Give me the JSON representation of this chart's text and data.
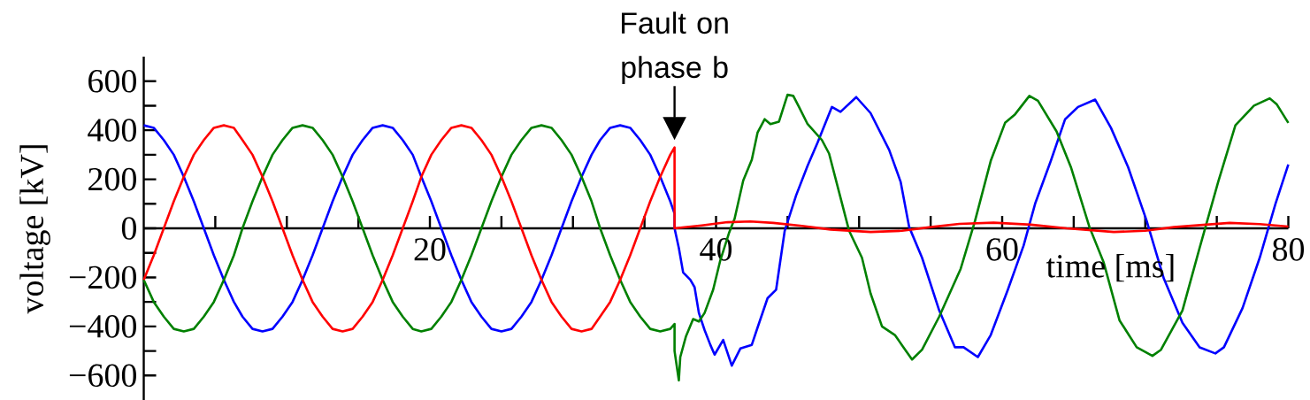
{
  "chart_data": {
    "type": "line",
    "xlabel": "time [ms]",
    "ylabel": "voltage [kV]",
    "annotations": [
      {
        "text": "Fault on phase b",
        "x": 37.1,
        "y": 330
      }
    ],
    "xlim": [
      0,
      80
    ],
    "ylim": [
      -700,
      700
    ],
    "xticks": [
      {
        "value": 5,
        "label": null
      },
      {
        "value": 10,
        "label": null
      },
      {
        "value": 15,
        "label": null
      },
      20,
      {
        "value": 25,
        "label": null
      },
      {
        "value": 30,
        "label": null
      },
      {
        "value": 35,
        "label": null
      },
      40,
      {
        "value": 45,
        "label": null
      },
      {
        "value": 50,
        "label": null
      },
      {
        "value": 55,
        "label": null
      },
      60,
      {
        "value": 65,
        "label": null
      },
      {
        "value": 70,
        "label": null
      },
      {
        "value": 75,
        "label": null
      },
      80
    ],
    "yticks": [
      {
        "value": -600,
        "label": "−600"
      },
      {
        "value": -500,
        "label": null
      },
      {
        "value": -400,
        "label": "−400"
      },
      {
        "value": -300,
        "label": null
      },
      {
        "value": -200,
        "label": "−200"
      },
      {
        "value": -100,
        "label": null
      },
      0,
      {
        "value": 100,
        "label": null
      },
      200,
      {
        "value": 300,
        "label": null
      },
      400,
      {
        "value": 500,
        "label": null
      },
      600
    ],
    "series": [
      {
        "color": "#0000ff",
        "x": [
          0,
          0.7,
          1.4,
          2.1,
          2.8,
          3.5,
          4.2,
          4.9,
          5.6,
          6.3,
          6.9,
          7.6,
          8.3,
          9.0,
          9.7,
          10.4,
          11.1,
          11.8,
          12.5,
          13.2,
          13.9,
          14.6,
          15.3,
          16.0,
          16.7,
          17.4,
          18.1,
          18.8,
          19.4,
          20.1,
          20.8,
          21.5,
          22.2,
          22.9,
          23.6,
          24.3,
          25.0,
          25.7,
          26.4,
          27.1,
          27.8,
          28.5,
          29.2,
          29.9,
          30.6,
          31.3,
          31.9,
          32.6,
          33.3,
          34.0,
          34.7,
          35.4,
          36.1,
          36.8,
          37.1,
          37.1,
          37.4,
          37.7,
          38.2,
          38.5,
          38.8,
          39.2,
          39.6,
          39.9,
          40.5,
          41.1,
          41.7,
          42.5,
          42.9,
          43.6,
          44.2,
          44.8,
          45.6,
          46.4,
          47.1,
          48.1,
          48.7,
          49.8,
          50.8,
          52.1,
          52.9,
          53.5,
          54.4,
          55.6,
          56.7,
          57.3,
          58.3,
          59.2,
          60.4,
          61.5,
          62.3,
          63.4,
          64.4,
          65.3,
          66.5,
          67.6,
          68.8,
          70.1,
          71.3,
          72.6,
          73.8,
          74.9,
          75.5,
          76.8,
          78.0,
          79.1,
          80.0
        ],
        "values": [
          420,
          410,
          360,
          300,
          210,
          110,
          0,
          -110,
          -210,
          -300,
          -360,
          -410,
          -420,
          -410,
          -360,
          -300,
          -210,
          -110,
          0,
          110,
          210,
          300,
          360,
          410,
          420,
          410,
          360,
          300,
          210,
          110,
          0,
          -110,
          -210,
          -300,
          -360,
          -410,
          -420,
          -410,
          -360,
          -300,
          -210,
          -110,
          0,
          110,
          210,
          300,
          360,
          410,
          420,
          410,
          360,
          300,
          210,
          110,
          60,
          0,
          -80,
          -180,
          -210,
          -240,
          -345,
          -415,
          -475,
          -515,
          -455,
          -560,
          -490,
          -475,
          -405,
          -285,
          -250,
          -10,
          135,
          255,
          350,
          495,
          475,
          535,
          470,
          320,
          190,
          5,
          -120,
          -335,
          -485,
          -485,
          -525,
          -435,
          -250,
          -70,
          100,
          275,
          445,
          495,
          525,
          410,
          250,
          30,
          -205,
          -385,
          -485,
          -510,
          -485,
          -325,
          -120,
          100,
          260
        ]
      },
      {
        "color": "#008000",
        "x": [
          0,
          0.7,
          1.4,
          2.1,
          2.8,
          3.5,
          4.2,
          4.9,
          5.6,
          6.3,
          6.9,
          7.6,
          8.3,
          9.0,
          9.7,
          10.4,
          11.1,
          11.8,
          12.5,
          13.2,
          13.9,
          14.6,
          15.3,
          16.0,
          16.7,
          17.4,
          18.1,
          18.8,
          19.4,
          20.1,
          20.8,
          21.5,
          22.2,
          22.9,
          23.6,
          24.3,
          25.0,
          25.7,
          26.4,
          27.1,
          27.8,
          28.5,
          29.2,
          29.9,
          30.6,
          31.3,
          31.9,
          32.6,
          33.3,
          34.0,
          34.7,
          35.4,
          36.1,
          36.8,
          37.1,
          37.1,
          37.4,
          37.5,
          37.9,
          38.4,
          38.8,
          39.2,
          39.8,
          40.3,
          40.9,
          41.3,
          41.9,
          42.5,
          42.9,
          43.4,
          43.8,
          44.4,
          45.0,
          45.4,
          45.8,
          46.4,
          47.4,
          47.9,
          48.7,
          49.3,
          50.2,
          50.8,
          51.6,
          52.5,
          53.1,
          53.7,
          54.4,
          55.6,
          57.1,
          58.1,
          59.2,
          60.2,
          60.9,
          61.9,
          62.5,
          63.8,
          64.8,
          66.1,
          67.1,
          68.2,
          69.4,
          70.5,
          71.1,
          72.6,
          73.8,
          75.1,
          76.3,
          77.6,
          78.7,
          79.2,
          80.0
        ],
        "values": [
          -210,
          -300,
          -360,
          -410,
          -420,
          -410,
          -360,
          -300,
          -210,
          -110,
          0,
          110,
          210,
          300,
          360,
          410,
          420,
          410,
          360,
          300,
          210,
          110,
          0,
          -110,
          -210,
          -300,
          -360,
          -410,
          -420,
          -410,
          -360,
          -300,
          -210,
          -110,
          0,
          110,
          210,
          300,
          360,
          410,
          420,
          410,
          360,
          300,
          210,
          110,
          0,
          -110,
          -210,
          -300,
          -360,
          -410,
          -420,
          -410,
          -390,
          -500,
          -620,
          -525,
          -440,
          -370,
          -380,
          -345,
          -250,
          -130,
          -20,
          40,
          195,
          280,
          390,
          445,
          425,
          435,
          545,
          540,
          495,
          425,
          360,
          305,
          125,
          -10,
          -120,
          -265,
          -400,
          -435,
          -485,
          -535,
          -495,
          -360,
          -165,
          30,
          275,
          430,
          465,
          540,
          520,
          395,
          250,
          5,
          -140,
          -375,
          -485,
          -520,
          -495,
          -335,
          -80,
          190,
          420,
          500,
          530,
          505,
          430
        ]
      },
      {
        "color": "#ff0000",
        "x": [
          0,
          0.7,
          1.4,
          2.1,
          2.8,
          3.5,
          4.2,
          4.9,
          5.6,
          6.3,
          6.9,
          7.6,
          8.3,
          9.0,
          9.7,
          10.4,
          11.1,
          11.8,
          12.5,
          13.2,
          13.9,
          14.6,
          15.3,
          16.0,
          16.7,
          17.4,
          18.1,
          18.8,
          19.4,
          20.1,
          20.8,
          21.5,
          22.2,
          22.9,
          23.6,
          24.3,
          25.0,
          25.7,
          26.4,
          27.1,
          27.8,
          28.5,
          29.2,
          29.9,
          30.6,
          31.3,
          31.9,
          32.6,
          33.3,
          34.0,
          34.7,
          35.4,
          36.1,
          36.8,
          37.1,
          37.1,
          39.0,
          40.8,
          42.4,
          44.0,
          46.0,
          48.0,
          50.8,
          53.0,
          55.0,
          57.0,
          59.4,
          62.0,
          64.5,
          67.8,
          70.0,
          72.0,
          75.9,
          78.0,
          80.0
        ],
        "values": [
          -210,
          -110,
          0,
          110,
          210,
          300,
          360,
          410,
          420,
          410,
          360,
          300,
          210,
          110,
          0,
          -110,
          -210,
          -300,
          -360,
          -410,
          -420,
          -410,
          -360,
          -300,
          -210,
          -110,
          0,
          110,
          210,
          300,
          360,
          410,
          420,
          410,
          360,
          300,
          210,
          110,
          0,
          -110,
          -210,
          -300,
          -360,
          -410,
          -420,
          -410,
          -360,
          -300,
          -210,
          -110,
          0,
          110,
          210,
          300,
          330,
          0,
          12,
          25,
          28,
          22,
          10,
          -5,
          -15,
          -10,
          5,
          18,
          23,
          15,
          0,
          -15,
          -10,
          5,
          22,
          17,
          7
        ]
      }
    ]
  }
}
